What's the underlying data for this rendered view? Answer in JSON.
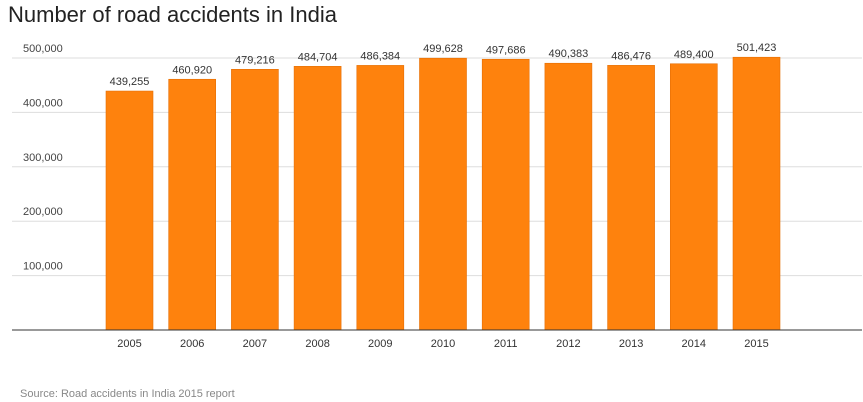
{
  "title": "Number of road accidents in India",
  "source": "Source: Road accidents in India 2015 report",
  "colors": {
    "bar": "#fe820d",
    "bar_stroke": "#e56f05",
    "grid": "#dddddd",
    "axis": "#333333"
  },
  "chart_data": {
    "type": "bar",
    "title": "Number of road accidents in India",
    "categories": [
      "2005",
      "2006",
      "2007",
      "2008",
      "2009",
      "2010",
      "2011",
      "2012",
      "2013",
      "2014",
      "2015"
    ],
    "values": [
      439255,
      460920,
      479216,
      484704,
      486384,
      499628,
      497686,
      490383,
      486476,
      489400,
      501423
    ],
    "value_labels": [
      "439,255",
      "460,920",
      "479,216",
      "484,704",
      "486,384",
      "499,628",
      "497,686",
      "490,383",
      "486,476",
      "489,400",
      "501,423"
    ],
    "yticks": [
      100000,
      200000,
      300000,
      400000,
      500000
    ],
    "ytick_labels": [
      "100,000",
      "200,000",
      "300,000",
      "400,000",
      "500,000"
    ],
    "ylim": [
      0,
      500000
    ],
    "xlabel": "",
    "ylabel": "",
    "grid": true,
    "legend": "none"
  }
}
